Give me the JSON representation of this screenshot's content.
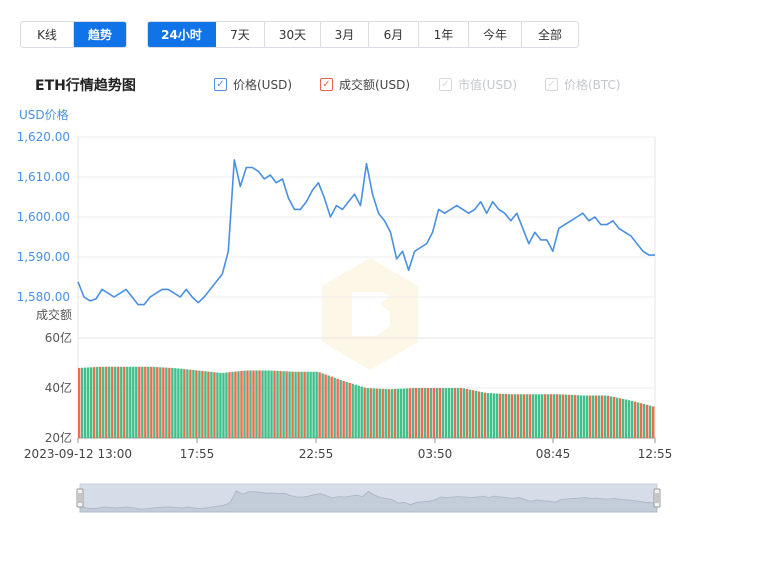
{
  "view_toggle": {
    "kline_label": "K线",
    "trend_label": "趋势"
  },
  "ranges": [
    "24小时",
    "7天",
    "30天",
    "3月",
    "6月",
    "1年",
    "今年",
    "全部"
  ],
  "active_range": "24小时",
  "header": {
    "title": "ETH行情趋势图"
  },
  "legend": [
    {
      "label": "价格(USD)",
      "active": true,
      "color": "#4a90e2"
    },
    {
      "label": "成交额(USD)",
      "active": true,
      "color": "#e8654a"
    },
    {
      "label": "市值(USD)",
      "active": false
    },
    {
      "label": "价格(BTC)",
      "active": false
    }
  ],
  "colors": {
    "price_line": "#4a90e2",
    "volume_up": "#3fbf8a",
    "volume_down": "#f06a4d",
    "grid": "#eeeeee",
    "navigator_fill": "#d6dde8"
  },
  "chart_data": {
    "type": "line",
    "price": {
      "ylabel": "USD价格",
      "yticks": [
        "1,620.00",
        "1,610.00",
        "1,600.00",
        "1,590.00",
        "1,580.00"
      ],
      "ylim": [
        1578,
        1620
      ],
      "x": [
        0,
        0.25,
        0.5,
        0.75,
        1,
        1.25,
        1.5,
        1.75,
        2,
        2.25,
        2.5,
        2.75,
        3,
        3.25,
        3.5,
        3.75,
        4,
        4.25,
        4.5,
        4.75,
        5,
        5.25,
        5.5,
        5.75,
        6,
        6.25,
        6.5,
        6.75,
        7,
        7.25,
        7.5,
        7.75,
        8,
        8.25,
        8.5,
        8.75,
        9,
        9.25,
        9.5,
        9.75,
        10,
        10.25,
        10.5,
        10.75,
        11,
        11.25,
        11.5,
        11.75,
        12,
        12.25,
        12.5,
        12.75,
        13,
        13.25,
        13.5,
        13.75,
        14,
        14.25,
        14.5,
        14.75,
        15,
        15.25,
        15.5,
        15.75,
        16,
        16.25,
        16.5,
        16.75,
        17,
        17.25,
        17.5,
        17.75,
        18,
        18.25,
        18.5,
        18.75,
        19,
        19.25,
        19.5,
        19.75,
        20,
        20.25,
        20.5,
        20.75,
        21,
        21.25,
        21.5,
        21.75,
        22,
        22.25,
        22.5,
        22.75,
        23,
        23.25,
        23.5,
        23.75,
        24
      ],
      "values": [
        1582,
        1578,
        1577,
        1577.5,
        1580,
        1579,
        1578,
        1579,
        1580,
        1578,
        1576,
        1576,
        1578,
        1579,
        1580,
        1580,
        1579,
        1578,
        1580,
        1578,
        1576.5,
        1578,
        1580,
        1582,
        1584,
        1590,
        1614,
        1607,
        1612,
        1612,
        1611,
        1609,
        1610,
        1608,
        1609,
        1604,
        1601,
        1601,
        1603,
        1606,
        1608,
        1604,
        1599,
        1602,
        1601,
        1603,
        1605,
        1602,
        1613,
        1605,
        1600,
        1598,
        1595,
        1588,
        1590,
        1585,
        1590,
        1591,
        1592,
        1595,
        1601,
        1600,
        1601,
        1602,
        1601,
        1600,
        1601,
        1603,
        1600,
        1603,
        1601,
        1600,
        1598,
        1600,
        1596,
        1592,
        1595,
        1593,
        1593,
        1590,
        1596,
        1597,
        1598,
        1599,
        1600,
        1598,
        1599,
        1597,
        1597,
        1598,
        1596,
        1595,
        1594,
        1592,
        1590,
        1589,
        1589
      ],
      "xticks": [
        "2023-09-12 13:00",
        "17:55",
        "22:55",
        "03:50",
        "08:45",
        "12:55"
      ]
    },
    "volume": {
      "ylabel": "成交额",
      "yticks": [
        "60亿",
        "40亿",
        "20亿"
      ],
      "ylim": [
        20,
        60
      ],
      "x": [
        0,
        1,
        2,
        3,
        4,
        5,
        6,
        7,
        8,
        9,
        10,
        11,
        12,
        13,
        14,
        15,
        16,
        17,
        18,
        19,
        20,
        21,
        22,
        23,
        24
      ],
      "values": [
        48,
        48.5,
        48.5,
        48.5,
        48,
        47,
        46,
        47,
        47,
        46.5,
        46.5,
        43,
        40,
        39.5,
        40,
        40,
        40,
        38,
        37.5,
        37.5,
        37.5,
        37,
        37,
        35,
        32.5
      ]
    }
  }
}
